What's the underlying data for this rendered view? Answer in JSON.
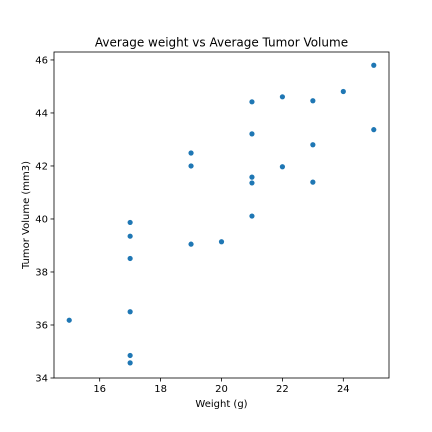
{
  "chart_data": {
    "type": "scatter",
    "title": "Average weight vs Average Tumor Volume",
    "xlabel": "Weight (g)",
    "ylabel": "Tumor Volume (mm3)",
    "xlim": [
      14.5,
      25.5
    ],
    "ylim": [
      34.0,
      46.3
    ],
    "xticks": [
      16,
      18,
      20,
      22,
      24
    ],
    "yticks": [
      34,
      36,
      38,
      40,
      42,
      44,
      46
    ],
    "grid": false,
    "marker_color": "#1f77b4",
    "points": [
      {
        "x": 15,
        "y": 36.18
      },
      {
        "x": 17,
        "y": 39.87
      },
      {
        "x": 17,
        "y": 39.35
      },
      {
        "x": 17,
        "y": 38.51
      },
      {
        "x": 17,
        "y": 36.5
      },
      {
        "x": 17,
        "y": 34.85
      },
      {
        "x": 17,
        "y": 34.57
      },
      {
        "x": 19,
        "y": 42.49
      },
      {
        "x": 19,
        "y": 42.0
      },
      {
        "x": 19,
        "y": 39.05
      },
      {
        "x": 20,
        "y": 39.14
      },
      {
        "x": 21,
        "y": 44.42
      },
      {
        "x": 21,
        "y": 43.21
      },
      {
        "x": 21,
        "y": 41.58
      },
      {
        "x": 21,
        "y": 41.36
      },
      {
        "x": 21,
        "y": 40.11
      },
      {
        "x": 22,
        "y": 44.61
      },
      {
        "x": 22,
        "y": 41.97
      },
      {
        "x": 23,
        "y": 44.46
      },
      {
        "x": 23,
        "y": 42.8
      },
      {
        "x": 23,
        "y": 41.39
      },
      {
        "x": 24,
        "y": 44.81
      },
      {
        "x": 25,
        "y": 45.8
      },
      {
        "x": 25,
        "y": 43.37
      }
    ]
  }
}
